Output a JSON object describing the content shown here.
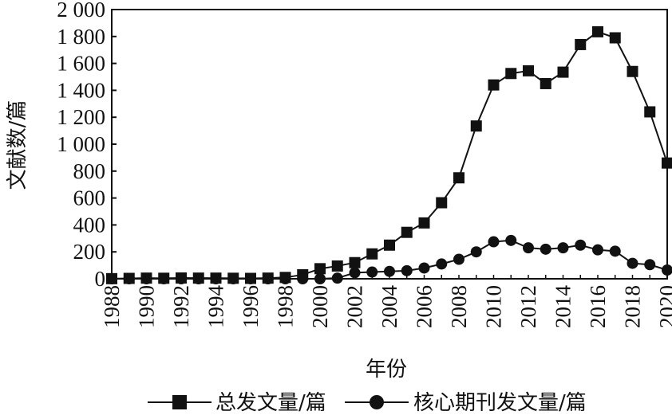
{
  "chart_data": {
    "type": "line",
    "xlabel": "年份",
    "ylabel": "文献数/篇",
    "xlim": [
      1988,
      2020
    ],
    "ylim": [
      0,
      2000
    ],
    "x_ticks": [
      "1988",
      "1990",
      "1992",
      "1994",
      "1996",
      "1998",
      "2000",
      "2002",
      "2004",
      "2006",
      "2008",
      "2010",
      "2012",
      "2014",
      "2016",
      "2018",
      "2020"
    ],
    "y_ticks": [
      "0",
      "200",
      "400",
      "600",
      "800",
      "1 000",
      "1 200",
      "1 400",
      "1 600",
      "1 800",
      "2 000"
    ],
    "x": [
      1988,
      1989,
      1990,
      1991,
      1992,
      1993,
      1994,
      1995,
      1996,
      1997,
      1998,
      1999,
      2000,
      2001,
      2002,
      2003,
      2004,
      2005,
      2006,
      2007,
      2008,
      2009,
      2010,
      2011,
      2012,
      2013,
      2014,
      2015,
      2016,
      2017,
      2018,
      2019,
      2020
    ],
    "series": [
      {
        "name": "总发文量/篇",
        "marker": "square",
        "values": [
          1,
          3,
          5,
          4,
          6,
          5,
          5,
          4,
          3,
          5,
          10,
          30,
          75,
          95,
          120,
          185,
          250,
          345,
          415,
          565,
          750,
          1135,
          1440,
          1525,
          1545,
          1450,
          1535,
          1740,
          1835,
          1790,
          1540,
          1240,
          860
        ]
      },
      {
        "name": "核心期刊发文量/篇",
        "marker": "circle",
        "values": [
          0,
          0,
          0,
          0,
          0,
          0,
          0,
          0,
          0,
          0,
          0,
          0,
          0,
          5,
          45,
          50,
          55,
          60,
          80,
          110,
          145,
          200,
          275,
          285,
          230,
          220,
          230,
          250,
          215,
          205,
          115,
          105,
          65
        ]
      }
    ],
    "grid": false,
    "legend": "bottom",
    "colors": {
      "line": "#111111",
      "axis": "#111111"
    }
  }
}
